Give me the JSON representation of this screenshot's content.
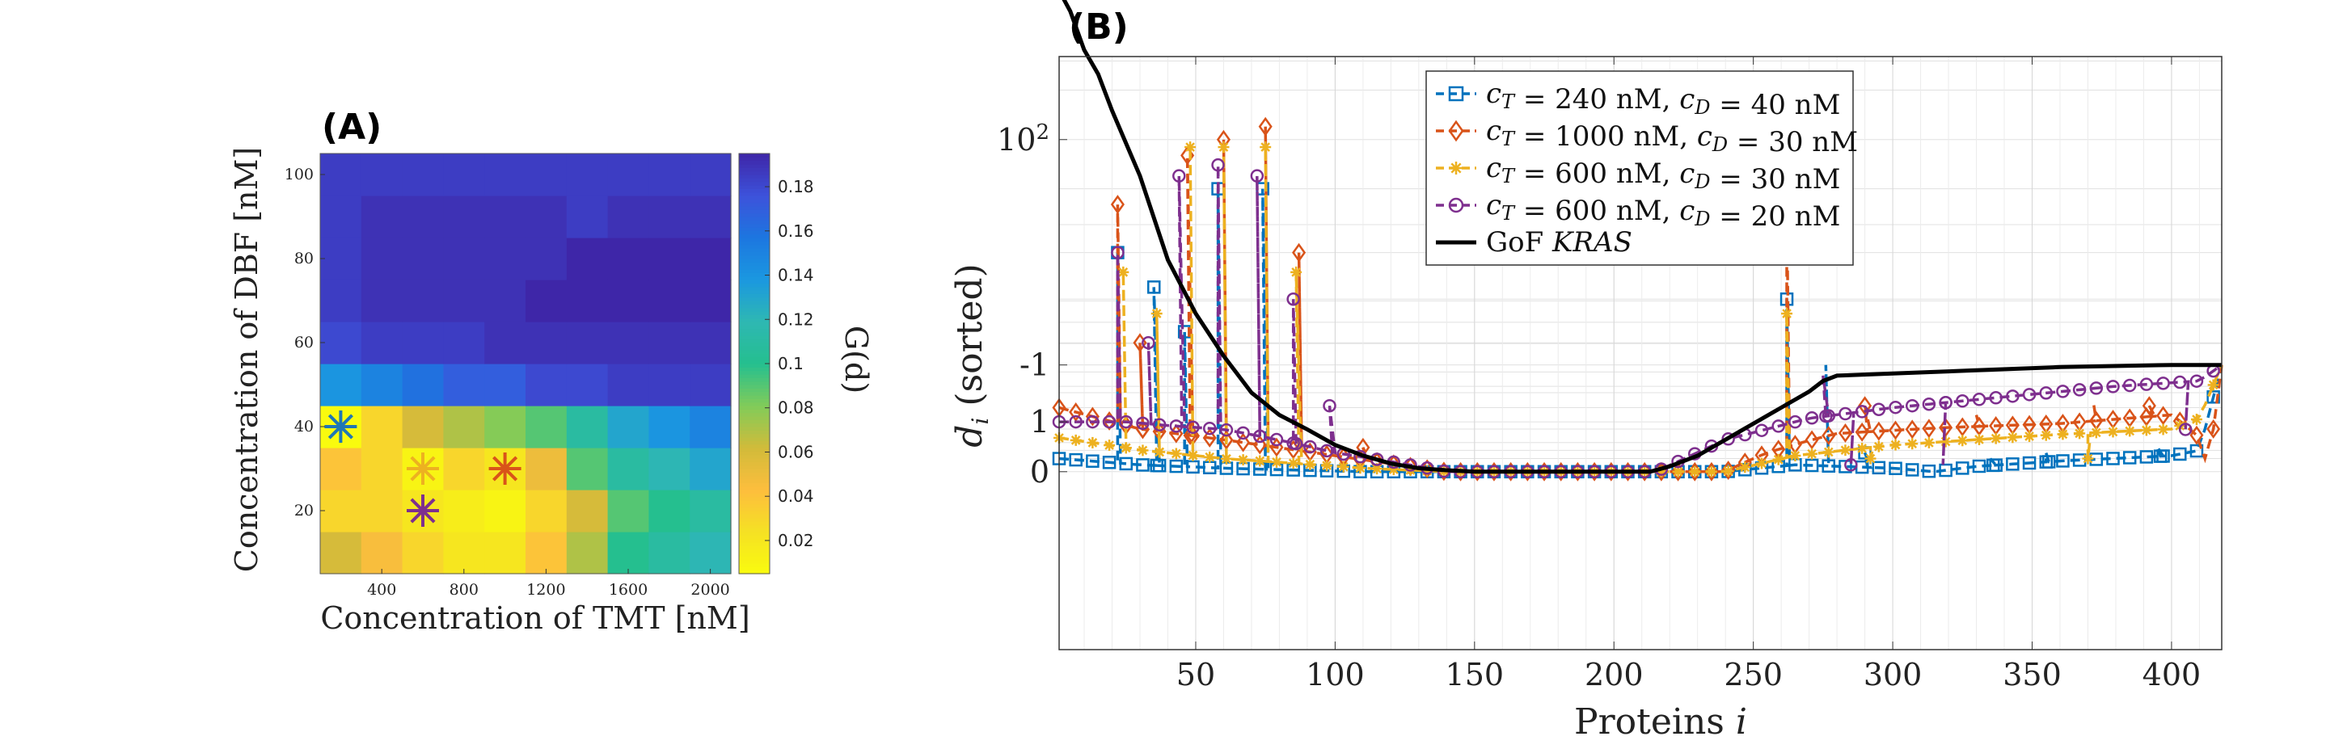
{
  "panels": {
    "a_label": "(A)",
    "b_label": "(B)"
  },
  "chart_data": [
    {
      "type": "heatmap",
      "panel": "(A)",
      "xlabel": "Concentration of TMT [nM]",
      "ylabel": "Concentration of DBF [nM]",
      "colorbar_label": "G(d)",
      "x_values": [
        200,
        400,
        600,
        800,
        1000,
        1200,
        1400,
        1600,
        1800,
        2000
      ],
      "y_values": [
        10,
        20,
        30,
        40,
        50,
        60,
        70,
        80,
        90,
        100
      ],
      "x_ticks": [
        400,
        800,
        1200,
        1600,
        2000
      ],
      "y_ticks": [
        20,
        40,
        60,
        80,
        100
      ],
      "colorbar_range": [
        0.005,
        0.195
      ],
      "colorbar_ticks": [
        0.02,
        0.04,
        0.06,
        0.08,
        0.1,
        0.12,
        0.14,
        0.16,
        0.18
      ],
      "colorbar_tick_labels": [
        "0.02",
        "0.04",
        "0.06",
        "0.08",
        "0.1",
        "0.12",
        "0.14",
        "0.16",
        "0.18"
      ],
      "colormap": "parula",
      "values": [
        [
          0.06,
          0.045,
          0.03,
          0.02,
          0.02,
          0.04,
          0.07,
          0.1,
          0.11,
          0.12
        ],
        [
          0.03,
          0.03,
          0.02,
          0.015,
          0.01,
          0.03,
          0.06,
          0.09,
          0.1,
          0.11
        ],
        [
          0.04,
          0.03,
          0.01,
          0.03,
          0.02,
          0.05,
          0.09,
          0.11,
          0.12,
          0.13
        ],
        [
          0.005,
          0.03,
          0.06,
          0.07,
          0.08,
          0.09,
          0.11,
          0.13,
          0.14,
          0.15
        ],
        [
          0.14,
          0.15,
          0.16,
          0.17,
          0.17,
          0.18,
          0.18,
          0.185,
          0.185,
          0.185
        ],
        [
          0.18,
          0.185,
          0.185,
          0.185,
          0.19,
          0.19,
          0.19,
          0.19,
          0.19,
          0.19
        ],
        [
          0.185,
          0.19,
          0.19,
          0.19,
          0.19,
          0.195,
          0.195,
          0.195,
          0.195,
          0.195
        ],
        [
          0.185,
          0.19,
          0.19,
          0.19,
          0.19,
          0.19,
          0.195,
          0.195,
          0.195,
          0.195
        ],
        [
          0.185,
          0.19,
          0.19,
          0.19,
          0.19,
          0.19,
          0.185,
          0.19,
          0.19,
          0.19
        ],
        [
          0.185,
          0.185,
          0.185,
          0.185,
          0.185,
          0.185,
          0.185,
          0.185,
          0.185,
          0.185
        ]
      ],
      "markers": [
        {
          "x": 200,
          "y": 40,
          "color": "#1f77b4"
        },
        {
          "x": 600,
          "y": 30,
          "color": "#edb120"
        },
        {
          "x": 1000,
          "y": 30,
          "color": "#d95319"
        },
        {
          "x": 600,
          "y": 20,
          "color": "#7e2f8e"
        }
      ]
    },
    {
      "type": "line",
      "panel": "(B)",
      "xlabel": "Proteins i",
      "ylabel": "d_i (sorted)",
      "xlim": [
        1,
        418
      ],
      "x_ticks": [
        50,
        100,
        150,
        200,
        250,
        300,
        350,
        400
      ],
      "y_scale": "symlog",
      "y_ticks": [
        -1,
        0,
        1,
        100
      ],
      "y_tick_labels": [
        "-1",
        "0",
        "1",
        "10^2"
      ],
      "grid": true,
      "legend_position": "top-center",
      "series": [
        {
          "name": "c_T = 240 nM, c_D = 40 nM",
          "color": "#0072bd",
          "marker": "square",
          "style": "dashed",
          "base_x": [
            1,
            30,
            60,
            110,
            140,
            215,
            240,
            265,
            300,
            330,
            360,
            400,
            410,
            418
          ],
          "base_y": [
            0.2,
            0.1,
            0.05,
            0.0,
            0.0,
            0.0,
            0.0,
            0.1,
            0.05,
            -0.05,
            -0.1,
            -0.15,
            -0.2,
            -1.0
          ],
          "spikes": [
            [
              22,
              20
            ],
            [
              35,
              12
            ],
            [
              46,
              6
            ],
            [
              58,
              50
            ],
            [
              74,
              50
            ],
            [
              262,
              10
            ],
            [
              276,
              -1.0
            ],
            [
              290,
              0.3
            ],
            [
              335,
              0.2
            ],
            [
              355,
              0.3
            ],
            [
              395,
              0.4
            ]
          ]
        },
        {
          "name": "c_T = 1000 nM, c_D = 30 nM",
          "color": "#d95319",
          "marker": "diamond",
          "style": "dashed",
          "base_x": [
            1,
            30,
            60,
            100,
            140,
            215,
            240,
            255,
            280,
            320,
            360,
            400,
            410,
            418
          ],
          "base_y": [
            -0.6,
            -0.4,
            -0.3,
            -0.15,
            0.0,
            0.0,
            0.0,
            0.3,
            0.7,
            0.85,
            0.95,
            1.2,
            0.6,
            -1.0
          ],
          "spikes": [
            [
              22,
              40
            ],
            [
              30,
              5
            ],
            [
              47,
              80
            ],
            [
              60,
              100
            ],
            [
              75,
              120
            ],
            [
              87,
              20
            ],
            [
              110,
              0.4
            ],
            [
              262,
              40
            ],
            [
              290,
              1.5
            ],
            [
              330,
              1.2
            ],
            [
              372,
              1.6
            ],
            [
              392,
              1.5
            ]
          ]
        },
        {
          "name": "c_T = 600 nM, c_D = 30 nM",
          "color": "#edb120",
          "marker": "star",
          "style": "dashed",
          "base_x": [
            1,
            30,
            60,
            110,
            140,
            215,
            240,
            265,
            300,
            330,
            360,
            400,
            410,
            418
          ],
          "base_y": [
            0.6,
            0.35,
            0.2,
            0.05,
            0.0,
            0.0,
            0.0,
            -0.15,
            -0.25,
            -0.3,
            -0.35,
            -0.4,
            -0.5,
            -1.0
          ],
          "spikes": [
            [
              24,
              15
            ],
            [
              36,
              8
            ],
            [
              48,
              90
            ],
            [
              60,
              90
            ],
            [
              75,
              90
            ],
            [
              86,
              15
            ],
            [
              262,
              8
            ],
            [
              292,
              0.2
            ],
            [
              370,
              0.2
            ]
          ]
        },
        {
          "name": "c_T = 600 nM, c_D = 20 nM",
          "color": "#7e2f8e",
          "marker": "circle",
          "style": "dashed",
          "base_x": [
            1,
            25,
            40,
            60,
            100,
            140,
            215,
            240,
            270,
            300,
            340,
            380,
            410,
            418
          ],
          "base_y": [
            1.0,
            1.0,
            0.9,
            0.8,
            0.3,
            0.0,
            0.0,
            -0.3,
            -0.5,
            -0.6,
            -0.7,
            -0.8,
            -0.85,
            -1.0
          ],
          "spikes": [
            [
              22,
              20
            ],
            [
              33,
              5
            ],
            [
              44,
              60
            ],
            [
              58,
              70
            ],
            [
              72,
              60
            ],
            [
              85,
              10
            ],
            [
              98,
              1.5
            ],
            [
              275,
              -0.9
            ],
            [
              285,
              0.1
            ],
            [
              318,
              0.1
            ],
            [
              405,
              0.8
            ]
          ]
        },
        {
          "name": "GoF KRAS",
          "color": "#000000",
          "marker": "none",
          "style": "solid",
          "x": [
            1,
            5,
            10,
            15,
            20,
            30,
            40,
            50,
            60,
            70,
            80,
            90,
            100,
            110,
            120,
            130,
            140,
            150,
            200,
            213,
            220,
            230,
            240,
            250,
            260,
            270,
            275,
            280,
            300,
            330,
            360,
            400,
            418
          ],
          "y": [
            800,
            600,
            350,
            250,
            150,
            60,
            18,
            8,
            4,
            2,
            1.2,
            0.8,
            0.45,
            0.25,
            0.12,
            0.05,
            0.02,
            0.0,
            0.0,
            0.0,
            -0.05,
            -0.15,
            -0.3,
            -0.45,
            -0.6,
            -0.75,
            -0.85,
            -0.9,
            -0.92,
            -0.95,
            -0.98,
            -1.0,
            -1.0
          ]
        }
      ]
    }
  ]
}
